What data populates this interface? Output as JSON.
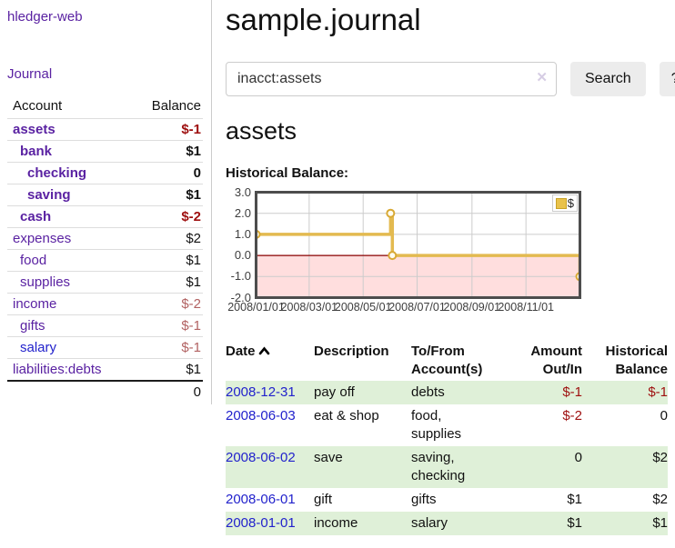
{
  "app": {
    "title": "hledger-web"
  },
  "sidebar": {
    "journal_link": "Journal",
    "accounts_table": {
      "headers": {
        "account": "Account",
        "balance": "Balance"
      },
      "rows": [
        {
          "name": "assets",
          "balance": "$-1",
          "depth": 1,
          "in_account": true
        },
        {
          "name": "bank",
          "balance": "$1",
          "depth": 2,
          "in_account": true
        },
        {
          "name": "checking",
          "balance": "0",
          "depth": 3,
          "in_account": true
        },
        {
          "name": "saving",
          "balance": "$1",
          "depth": 3,
          "in_account": true
        },
        {
          "name": "cash",
          "balance": "$-2",
          "depth": 2,
          "in_account": true
        },
        {
          "name": "expenses",
          "balance": "$2",
          "depth": 1,
          "in_account": false
        },
        {
          "name": "food",
          "balance": "$1",
          "depth": 2,
          "in_account": false
        },
        {
          "name": "supplies",
          "balance": "$1",
          "depth": 2,
          "in_account": false
        },
        {
          "name": "income",
          "balance": "$-2",
          "depth": 1,
          "in_account": false
        },
        {
          "name": "gifts",
          "balance": "$-1",
          "depth": 2,
          "in_account": false
        },
        {
          "name": "salary",
          "balance": "$-1",
          "depth": 2,
          "in_account": false,
          "link_style": "unvisited"
        },
        {
          "name": "liabilities:debts",
          "balance": "$1",
          "depth": 1,
          "in_account": false
        }
      ],
      "total": "0"
    }
  },
  "main": {
    "title": "sample.journal",
    "search": {
      "value": "inacct:assets",
      "clear_icon": "✕",
      "search_button": "Search",
      "help_button": "?"
    },
    "account_heading": "assets"
  },
  "chart_data": {
    "type": "line",
    "title": "Historical Balance:",
    "legend": "$",
    "legend_position": "top-right",
    "grid": true,
    "ylim": [
      -2,
      3
    ],
    "x_range_days": [
      0,
      366
    ],
    "y_ticks": [
      {
        "value": 3,
        "label": "3.0"
      },
      {
        "value": 2,
        "label": "2.0"
      },
      {
        "value": 1,
        "label": "1.0"
      },
      {
        "value": 0,
        "label": "0.0"
      },
      {
        "value": -1,
        "label": "-1.0"
      },
      {
        "value": -2,
        "label": "-2.0"
      }
    ],
    "x_ticks": [
      {
        "day": 0,
        "label": "2008/01/01"
      },
      {
        "day": 60,
        "label": "2008/03/01"
      },
      {
        "day": 121,
        "label": "2008/05/01"
      },
      {
        "day": 182,
        "label": "2008/07/01"
      },
      {
        "day": 244,
        "label": "2008/09/01"
      },
      {
        "day": 305,
        "label": "2008/11/01"
      }
    ],
    "y_grid_values": [
      2,
      1,
      0,
      -1
    ],
    "x_grid_days": [
      60,
      121,
      182,
      244,
      305
    ],
    "zero_line_color": "#8b0000",
    "negative_region_fill": "#ffdede",
    "series": [
      {
        "name": "$",
        "color": "#e3ba50",
        "marker_color": "#d8a935",
        "data_points": [
          [
            "2008-01-01",
            1
          ],
          [
            "2008-06-01",
            2
          ],
          [
            "2008-06-03",
            0
          ],
          [
            "2008-12-31",
            -1
          ]
        ],
        "points": [
          [
            0,
            1
          ],
          [
            152,
            1
          ],
          [
            152,
            2
          ],
          [
            154,
            2
          ],
          [
            154,
            0
          ],
          [
            366,
            0
          ],
          [
            366,
            -1
          ]
        ],
        "markers": [
          [
            0,
            1
          ],
          [
            152,
            2
          ],
          [
            154,
            0
          ],
          [
            366,
            -1
          ]
        ]
      }
    ]
  },
  "register": {
    "headers": [
      {
        "l1": "Date",
        "l2": "",
        "sorted": "ascending"
      },
      {
        "l1": "Description",
        "l2": ""
      },
      {
        "l1": "To/From",
        "l2": "Account(s)"
      },
      {
        "l1": "Amount",
        "l2": "Out/In",
        "align": "right"
      },
      {
        "l1": "Historical",
        "l2": "Balance",
        "align": "right"
      }
    ],
    "rows": [
      {
        "date": "2008-12-31",
        "description": "pay off",
        "accounts": "debts",
        "amount": "$-1",
        "balance": "$-1"
      },
      {
        "date": "2008-06-03",
        "description": "eat & shop",
        "accounts": "food, supplies",
        "amount": "$-2",
        "balance": "0"
      },
      {
        "date": "2008-06-02",
        "description": "save",
        "accounts": "saving, checking",
        "amount": "0",
        "balance": "$2"
      },
      {
        "date": "2008-06-01",
        "description": "gift",
        "accounts": "gifts",
        "amount": "$1",
        "balance": "$2"
      },
      {
        "date": "2008-01-01",
        "description": "income",
        "accounts": "salary",
        "amount": "$1",
        "balance": "$1"
      }
    ]
  },
  "colors": {
    "link_purple": "#5a22a2",
    "link_blue": "#2222cc",
    "negative_strong": "#9e0f0f",
    "negative_soft": "#b26262",
    "row_stripe_green": "#dff0d8",
    "series_gold": "#e3ba50",
    "chart_border": "#4d4d4d"
  },
  "icons": {
    "sort_ascending_icon": "chevron-up",
    "clear_search_icon": "x-cross"
  }
}
